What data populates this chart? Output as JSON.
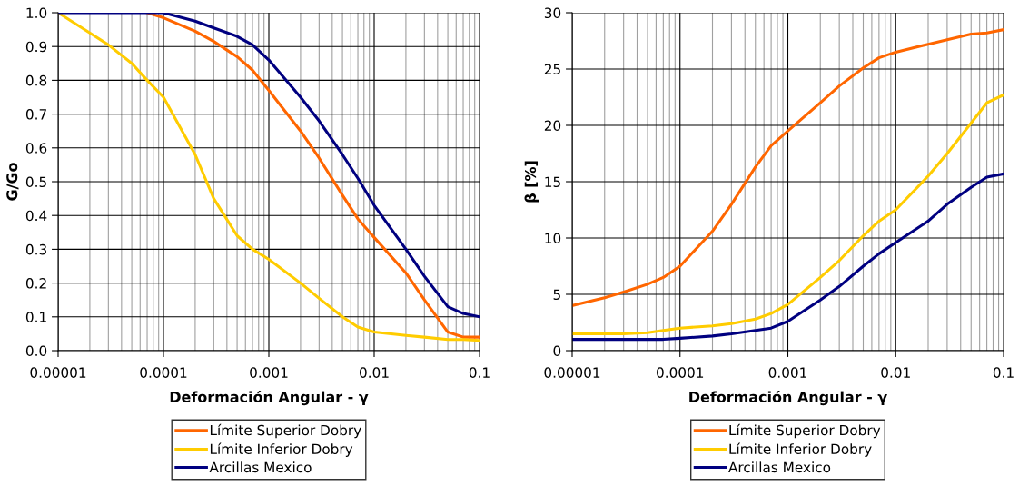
{
  "chart_data": [
    {
      "type": "line",
      "xlabel": "Deformación Angular - γ",
      "ylabel": "G/Go",
      "log": "x",
      "grid": true,
      "legend": "bottom",
      "x": [
        1e-05,
        2e-05,
        3e-05,
        5e-05,
        7e-05,
        0.0001,
        0.0002,
        0.0003,
        0.0005,
        0.0007,
        0.001,
        0.002,
        0.003,
        0.005,
        0.007,
        0.01,
        0.02,
        0.03,
        0.05,
        0.07,
        0.1
      ],
      "xlim": [
        1e-05,
        0.1
      ],
      "xticks": [
        {
          "value": 1e-05,
          "label": "0.00001"
        },
        {
          "value": 0.0001,
          "label": "0.0001"
        },
        {
          "value": 0.001,
          "label": "0.001"
        },
        {
          "value": 0.01,
          "label": "0.01"
        },
        {
          "value": 0.1,
          "label": "0.1"
        }
      ],
      "ylim": [
        0,
        1
      ],
      "yticks": [
        {
          "value": 0,
          "label": "0.0"
        },
        0.1,
        0.2,
        0.3,
        0.4,
        0.5,
        0.6,
        0.7,
        0.8,
        0.9,
        {
          "value": 1,
          "label": "1.0"
        }
      ],
      "series": [
        {
          "name": "Límite Superior Dobry",
          "color": "#ff6600",
          "values": [
            null,
            null,
            null,
            null,
            1.0,
            0.985,
            0.945,
            0.915,
            0.87,
            0.83,
            0.77,
            0.65,
            0.57,
            0.46,
            0.39,
            0.335,
            0.23,
            0.15,
            0.055,
            0.04,
            0.04
          ]
        },
        {
          "name": "Límite Inferior Dobry",
          "color": "#ffcc00",
          "values": [
            1.0,
            0.94,
            0.905,
            0.85,
            0.8,
            0.75,
            0.58,
            0.45,
            0.34,
            0.3,
            0.27,
            0.2,
            0.155,
            0.1,
            0.07,
            0.055,
            0.045,
            0.04,
            0.033,
            0.033,
            0.03
          ]
        },
        {
          "name": "Arcillas Mexico",
          "color": "#000080",
          "values": [
            1.0,
            1.0,
            1.0,
            1.0,
            1.0,
            1.0,
            0.975,
            0.955,
            0.93,
            0.905,
            0.86,
            0.75,
            0.68,
            0.58,
            0.51,
            0.43,
            0.3,
            0.22,
            0.13,
            0.11,
            0.1
          ]
        }
      ]
    },
    {
      "type": "line",
      "xlabel": "Deformación Angular - γ",
      "ylabel": "β [%]",
      "log": "x",
      "grid": true,
      "legend": "bottom",
      "x": [
        1e-05,
        2e-05,
        3e-05,
        5e-05,
        7e-05,
        0.0001,
        0.0002,
        0.0003,
        0.0005,
        0.0007,
        0.001,
        0.002,
        0.003,
        0.005,
        0.007,
        0.01,
        0.02,
        0.03,
        0.05,
        0.07,
        0.1
      ],
      "xlim": [
        1e-05,
        0.1
      ],
      "xticks": [
        {
          "value": 1e-05,
          "label": "0.00001"
        },
        {
          "value": 0.0001,
          "label": "0.0001"
        },
        {
          "value": 0.001,
          "label": "0.001"
        },
        {
          "value": 0.01,
          "label": "0.01"
        },
        {
          "value": 0.1,
          "label": "0.1"
        }
      ],
      "ylim": [
        0,
        30
      ],
      "yticks": [
        0,
        5,
        10,
        15,
        20,
        25,
        30
      ],
      "series": [
        {
          "name": "Límite Superior Dobry",
          "color": "#ff6600",
          "values": [
            4.0,
            4.7,
            5.2,
            5.9,
            6.5,
            7.5,
            10.6,
            13.0,
            16.3,
            18.2,
            19.5,
            22.0,
            23.5,
            25.1,
            26.0,
            26.5,
            27.2,
            27.6,
            28.1,
            28.2,
            28.5
          ]
        },
        {
          "name": "Límite Inferior Dobry",
          "color": "#ffcc00",
          "values": [
            1.5,
            1.5,
            1.5,
            1.6,
            1.8,
            2.0,
            2.2,
            2.4,
            2.8,
            3.3,
            4.1,
            6.5,
            8.0,
            10.2,
            11.5,
            12.5,
            15.5,
            17.5,
            20.2,
            22.0,
            22.7
          ]
        },
        {
          "name": "Arcillas Mexico",
          "color": "#000080",
          "values": [
            1.0,
            1.0,
            1.0,
            1.0,
            1.0,
            1.1,
            1.3,
            1.5,
            1.8,
            2.0,
            2.6,
            4.5,
            5.7,
            7.5,
            8.6,
            9.6,
            11.5,
            13.0,
            14.5,
            15.4,
            15.7
          ]
        }
      ]
    }
  ]
}
